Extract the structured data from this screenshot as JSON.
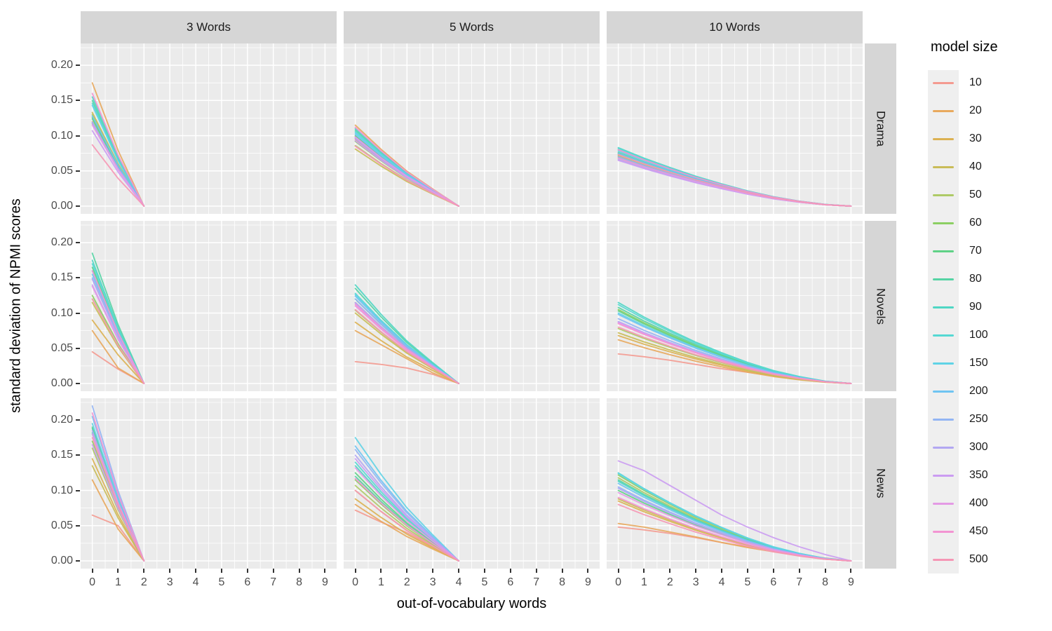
{
  "chart_data": {
    "type": "line",
    "title": "",
    "xlabel": "out-of-vocabulary words",
    "ylabel": "standard deviation of NPMI scores",
    "legend_title": "model size",
    "legend_position": "right",
    "grid": "on",
    "panel_background": "#EBEBEB",
    "grid_color": "#FFFFFF",
    "strip_background": "#D6D6D6",
    "axis_text_color": "#4D4D4D",
    "x_range": [
      -0.45,
      9.45
    ],
    "y_range": [
      -0.011,
      0.231
    ],
    "x_tick_labels": [
      "0",
      "1",
      "2",
      "3",
      "4",
      "5",
      "6",
      "7",
      "8",
      "9"
    ],
    "x_tick_values": [
      0,
      1,
      2,
      3,
      4,
      5,
      6,
      7,
      8,
      9
    ],
    "y_tick_labels": [
      "0.20",
      "0.15",
      "0.10",
      "0.05",
      "0.00"
    ],
    "y_tick_values": [
      0.2,
      0.15,
      0.1,
      0.05,
      0.0
    ],
    "x_minor_ticks": [
      0.5,
      1.5,
      2.5,
      3.5,
      4.5,
      5.5,
      6.5,
      7.5,
      8.5
    ],
    "y_minor_ticks": [
      0.025,
      0.075,
      0.125,
      0.175,
      0.225
    ],
    "facet_columns": [
      {
        "label": "3 Words",
        "x_end": 2
      },
      {
        "label": "5 Words",
        "x_end": 4
      },
      {
        "label": "10 Words",
        "x_end": 9
      }
    ],
    "facet_rows": [
      "Drama",
      "Novels",
      "News"
    ],
    "series_labels": [
      "10",
      "20",
      "30",
      "40",
      "50",
      "60",
      "70",
      "80",
      "90",
      "100",
      "150",
      "200",
      "250",
      "300",
      "350",
      "400",
      "450",
      "500"
    ],
    "series_colors": [
      "#F49A90",
      "#E8A95D",
      "#DCB152",
      "#C9BC58",
      "#AECA66",
      "#8CCF63",
      "#5FD286",
      "#55D4A4",
      "#4FD6C4",
      "#55D8D3",
      "#5FD3E6",
      "#6FC4F2",
      "#93B5F4",
      "#B2A7F2",
      "#CB9CF2",
      "#E49AE5",
      "#F394D2",
      "#F697B5"
    ],
    "decay_ratios": {
      "3 Words": [
        1,
        0.45,
        0
      ],
      "5 Words": [
        1,
        0.7,
        0.43,
        0.21,
        0
      ],
      "10 Words": [
        1,
        0.82,
        0.66,
        0.51,
        0.38,
        0.26,
        0.16,
        0.085,
        0.028,
        0
      ]
    },
    "start_values": {
      "Drama": {
        "3 Words": [
          0.12,
          0.175,
          0.117,
          0.133,
          0.13,
          0.126,
          0.124,
          0.15,
          0.155,
          0.146,
          0.143,
          0.128,
          0.119,
          0.118,
          0.107,
          0.115,
          0.16,
          0.087
        ],
        "5 Words": [
          0.099,
          0.115,
          0.095,
          0.081,
          0.086,
          0.092,
          0.1,
          0.108,
          0.11,
          0.106,
          0.104,
          0.102,
          0.097,
          0.096,
          0.093,
          0.098,
          0.112,
          0.085
        ],
        "10 Words": [
          0.072,
          0.07,
          0.068,
          0.07,
          0.072,
          0.074,
          0.076,
          0.08,
          0.083,
          0.082,
          0.078,
          0.075,
          0.07,
          0.066,
          0.065,
          0.068,
          0.08,
          0.073
        ]
      },
      "Novels": {
        "3 Words": [
          0.045,
          0.075,
          0.09,
          0.115,
          0.12,
          0.125,
          0.165,
          0.185,
          0.175,
          0.17,
          0.16,
          0.155,
          0.15,
          0.148,
          0.14,
          0.138,
          0.16,
          0.12
        ],
        "5 Words": [
          0.031,
          0.075,
          0.087,
          0.1,
          0.104,
          0.115,
          0.12,
          0.135,
          0.14,
          0.128,
          0.126,
          0.124,
          0.12,
          0.115,
          0.114,
          0.11,
          0.112,
          0.105
        ],
        "10 Words": [
          0.042,
          0.062,
          0.068,
          0.072,
          0.078,
          0.105,
          0.103,
          0.108,
          0.115,
          0.112,
          0.1,
          0.098,
          0.092,
          0.088,
          0.087,
          0.086,
          0.085,
          0.08
        ]
      },
      "News": {
        "3 Words": [
          0.065,
          0.115,
          0.145,
          0.135,
          0.16,
          0.17,
          0.19,
          0.188,
          0.182,
          0.18,
          0.195,
          0.205,
          0.22,
          0.185,
          0.165,
          0.18,
          0.21,
          0.175
        ],
        "5 Words": [
          0.072,
          0.08,
          0.088,
          0.1,
          0.107,
          0.115,
          0.125,
          0.12,
          0.135,
          0.14,
          0.175,
          0.163,
          0.158,
          0.15,
          0.145,
          0.132,
          0.117,
          0.1
        ],
        "10 Words": [
          0.048,
          0.053,
          0.085,
          0.088,
          0.118,
          0.122,
          0.1,
          0.115,
          0.113,
          0.125,
          0.124,
          0.11,
          0.105,
          0.103,
          0.142,
          0.097,
          0.09,
          0.08
        ]
      }
    },
    "custom_series": {
      "Novels|3 Words|20": [
        0.075,
        0.022,
        0
      ],
      "News|3 Words|10": [
        0.065,
        0.05,
        0
      ],
      "News|3 Words|20": [
        0.115,
        0.045,
        0
      ],
      "Novels|5 Words|10": [
        0.031,
        0.027,
        0.022,
        0.013,
        0
      ],
      "Novels|5 Words|20": [
        0.075,
        0.055,
        0.035,
        0.015,
        0
      ],
      "News|5 Words|10": [
        0.072,
        0.055,
        0.04,
        0.02,
        0
      ],
      "Novels|10 Words|10": [
        0.042,
        0.038,
        0.033,
        0.027,
        0.021,
        0.016,
        0.011,
        0.007,
        0.003,
        0
      ],
      "News|10 Words|10": [
        0.048,
        0.044,
        0.039,
        0.033,
        0.026,
        0.02,
        0.014,
        0.009,
        0.004,
        0
      ],
      "News|10 Words|20": [
        0.053,
        0.048,
        0.041,
        0.034,
        0.026,
        0.019,
        0.013,
        0.008,
        0.003,
        0
      ],
      "News|10 Words|350": [
        0.142,
        0.128,
        0.107,
        0.086,
        0.065,
        0.048,
        0.033,
        0.02,
        0.009,
        0
      ]
    }
  },
  "legend": {
    "title": "model size",
    "entries": [
      {
        "label": "10",
        "color": "#F49A90"
      },
      {
        "label": "20",
        "color": "#E8A95D"
      },
      {
        "label": "30",
        "color": "#DCB152"
      },
      {
        "label": "40",
        "color": "#C9BC58"
      },
      {
        "label": "50",
        "color": "#AECA66"
      },
      {
        "label": "60",
        "color": "#8CCF63"
      },
      {
        "label": "70",
        "color": "#5FD286"
      },
      {
        "label": "80",
        "color": "#55D4A4"
      },
      {
        "label": "90",
        "color": "#4FD6C4"
      },
      {
        "label": "100",
        "color": "#55D8D3"
      },
      {
        "label": "150",
        "color": "#5FD3E6"
      },
      {
        "label": "200",
        "color": "#6FC4F2"
      },
      {
        "label": "250",
        "color": "#93B5F4"
      },
      {
        "label": "300",
        "color": "#B2A7F2"
      },
      {
        "label": "350",
        "color": "#CB9CF2"
      },
      {
        "label": "400",
        "color": "#E49AE5"
      },
      {
        "label": "450",
        "color": "#F394D2"
      },
      {
        "label": "500",
        "color": "#F697B5"
      }
    ]
  },
  "facet_strip_top": [
    "3 Words",
    "5 Words",
    "10 Words"
  ],
  "facet_strip_right": [
    "Drama",
    "Novels",
    "News"
  ]
}
